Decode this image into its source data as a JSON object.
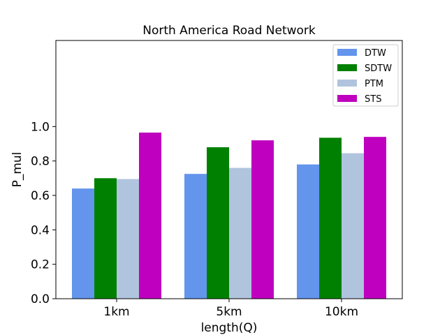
{
  "chart_data": {
    "type": "bar",
    "title": "North America Road Network",
    "xlabel": "length(Q)",
    "ylabel": "P_mul",
    "categories": [
      "1km",
      "5km",
      "10km"
    ],
    "ylim": [
      0,
      1.5
    ],
    "yticks": [
      "0.0",
      "0.2",
      "0.4",
      "0.6",
      "0.8",
      "1.0"
    ],
    "ytick_values": [
      0,
      0.2,
      0.4,
      0.6,
      0.8,
      1.0
    ],
    "grid": false,
    "legend_position": "top-right",
    "series": [
      {
        "name": "DTW",
        "color": "#6495ed",
        "values": [
          0.64,
          0.725,
          0.78
        ]
      },
      {
        "name": "SDTW",
        "color": "#008000",
        "values": [
          0.7,
          0.88,
          0.935
        ]
      },
      {
        "name": "PTM",
        "color": "#b0c4de",
        "values": [
          0.695,
          0.76,
          0.845
        ]
      },
      {
        "name": "STS",
        "color": "#bf00bf",
        "values": [
          0.965,
          0.92,
          0.94
        ]
      }
    ]
  }
}
